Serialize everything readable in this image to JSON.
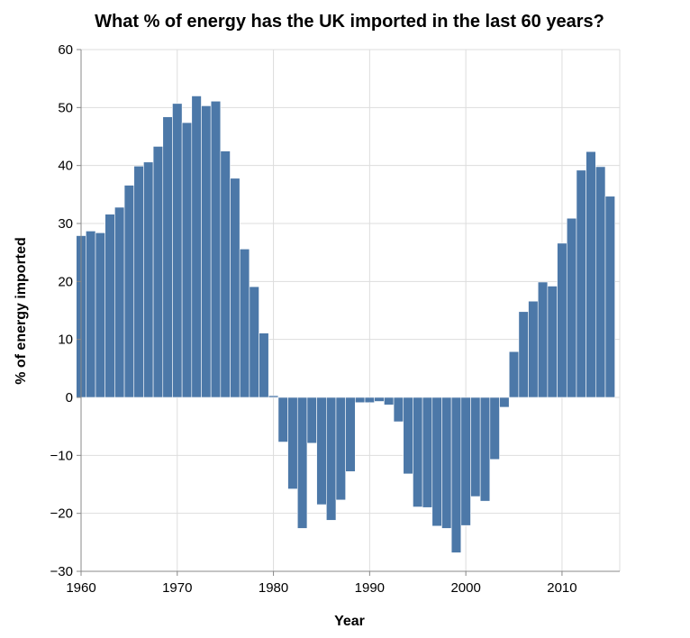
{
  "chart_data": {
    "type": "bar",
    "title": "What % of energy has the UK imported in the last 60 years?",
    "xlabel": "Year",
    "ylabel": "% of energy imported",
    "xlim": [
      1960,
      2016
    ],
    "ylim": [
      -30,
      60
    ],
    "x_ticks": [
      1960,
      1970,
      1980,
      1990,
      2000,
      2010
    ],
    "y_ticks": [
      -30,
      -20,
      -10,
      0,
      10,
      20,
      30,
      40,
      50,
      60
    ],
    "x_tick_labels": [
      "1960",
      "1970",
      "1980",
      "1990",
      "2000",
      "2010"
    ],
    "y_tick_labels": [
      "−30",
      "−20",
      "−10",
      "0",
      "10",
      "20",
      "30",
      "40",
      "50",
      "60"
    ],
    "grid": true,
    "bar_color": "#4c78a8",
    "x": [
      1960,
      1961,
      1962,
      1963,
      1964,
      1965,
      1966,
      1967,
      1968,
      1969,
      1970,
      1971,
      1972,
      1973,
      1974,
      1975,
      1976,
      1977,
      1978,
      1979,
      1980,
      1981,
      1982,
      1983,
      1984,
      1985,
      1986,
      1987,
      1988,
      1989,
      1990,
      1991,
      1992,
      1993,
      1994,
      1995,
      1996,
      1997,
      1998,
      1999,
      2000,
      2001,
      2002,
      2003,
      2004,
      2005,
      2006,
      2007,
      2008,
      2009,
      2010,
      2011,
      2012,
      2013,
      2014,
      2015
    ],
    "values": [
      27.9,
      28.7,
      28.4,
      31.6,
      32.8,
      36.6,
      39.9,
      40.6,
      43.3,
      48.4,
      50.7,
      47.4,
      52.0,
      50.3,
      51.1,
      42.5,
      37.8,
      25.6,
      19.1,
      11.1,
      0.3,
      -7.7,
      -15.8,
      -22.6,
      -7.9,
      -18.5,
      -21.2,
      -17.7,
      -12.8,
      -0.9,
      -0.9,
      -0.7,
      -1.3,
      -4.2,
      -13.2,
      -18.9,
      -19.0,
      -22.2,
      -22.6,
      -26.8,
      -22.1,
      -17.1,
      -17.9,
      -10.7,
      -1.7,
      7.9,
      14.8,
      16.6,
      19.9,
      19.2,
      26.6,
      30.9,
      39.2,
      42.4,
      39.8,
      34.7
    ]
  }
}
